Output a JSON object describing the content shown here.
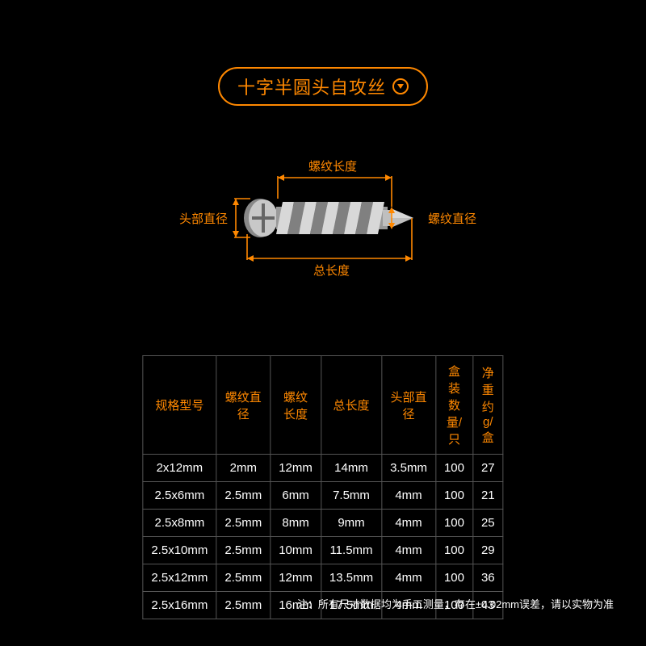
{
  "title": "十字半圆头自攻丝",
  "accent_color": "#ff8800",
  "background_color": "#000000",
  "diagram": {
    "labels": {
      "head_diameter": "头部直径",
      "thread_length": "螺纹长度",
      "thread_diameter": "螺纹直径",
      "total_length": "总长度"
    },
    "screw": {
      "head_fill": "#c8c8c8",
      "head_shadow": "#888888",
      "thread_light": "#d8d8d8",
      "thread_dark": "#808080",
      "tip_fill": "#bfbfbf"
    }
  },
  "table": {
    "columns": [
      "规格型号",
      "螺纹直径",
      "螺纹长度",
      "总长度",
      "头部直径",
      "盒装数量/只",
      "净重约g/盒"
    ],
    "rows": [
      [
        "2x12mm",
        "2mm",
        "12mm",
        "14mm",
        "3.5mm",
        "100",
        "27"
      ],
      [
        "2.5x6mm",
        "2.5mm",
        "6mm",
        "7.5mm",
        "4mm",
        "100",
        "21"
      ],
      [
        "2.5x8mm",
        "2.5mm",
        "8mm",
        "9mm",
        "4mm",
        "100",
        "25"
      ],
      [
        "2.5x10mm",
        "2.5mm",
        "10mm",
        "11.5mm",
        "4mm",
        "100",
        "29"
      ],
      [
        "2.5x12mm",
        "2.5mm",
        "12mm",
        "13.5mm",
        "4mm",
        "100",
        "36"
      ],
      [
        "2.5x16mm",
        "2.5mm",
        "16mm",
        "17.5mm",
        "4mm",
        "100",
        "43"
      ]
    ],
    "header_color": "#ff8800",
    "cell_color": "#ffffff",
    "border_color": "#555555"
  },
  "footnote": "注：所有尺寸数据均为手工测量，存在±0.02mm误差，请以实物为准"
}
